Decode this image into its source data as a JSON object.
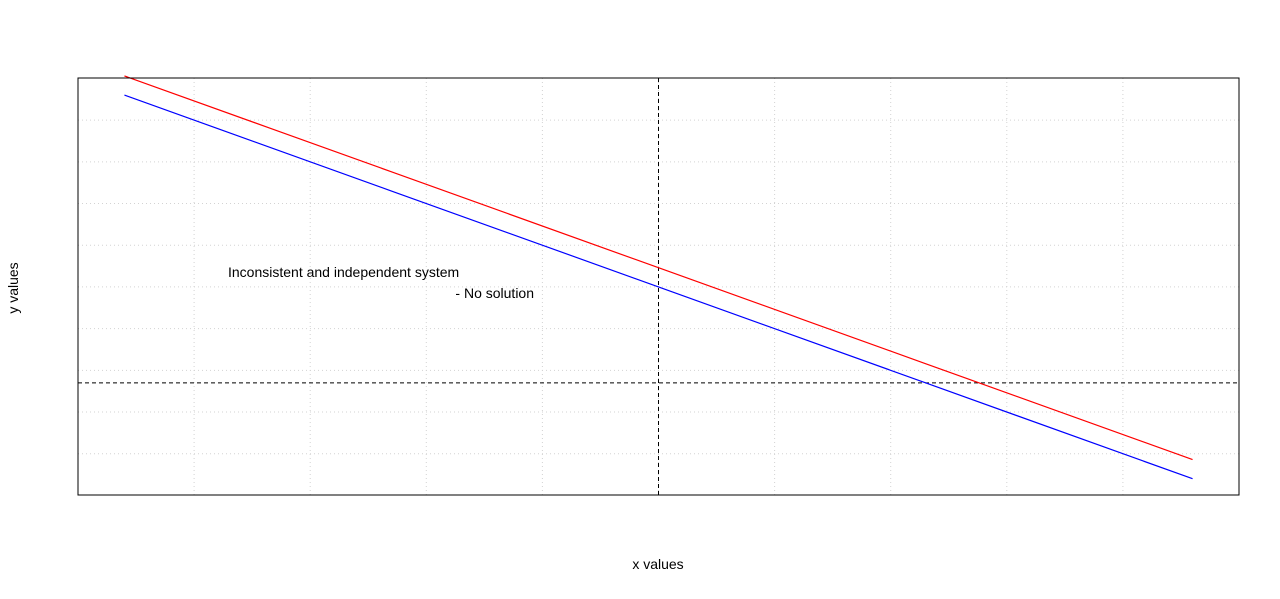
{
  "chart_data": {
    "type": "line",
    "xlabel": "x values",
    "ylabel": "y values",
    "annotations": [
      "Inconsistent and independent system",
      "- No solution"
    ],
    "x": [
      -4.6,
      -2.3,
      0,
      2.3,
      4.6
    ],
    "series": [
      {
        "color": "#ff0000",
        "values": [
          7.36,
          5.06,
          2.76,
          0.46,
          -1.84
        ]
      },
      {
        "color": "#0000ff",
        "values": [
          6.9,
          4.6,
          2.3,
          0,
          -2.3
        ]
      }
    ],
    "xlim": [
      -5,
      5
    ],
    "ylim": [
      -2.69,
      7.31
    ],
    "xticks": [
      -4,
      -3,
      -2,
      -1,
      0,
      1,
      2,
      3,
      4
    ],
    "yticks": [
      -1.7,
      -0.7,
      0.3,
      1.3,
      2.3,
      3.3,
      4.3,
      5.3,
      6.3
    ],
    "grid": true,
    "hline": 0,
    "vline": 0
  }
}
